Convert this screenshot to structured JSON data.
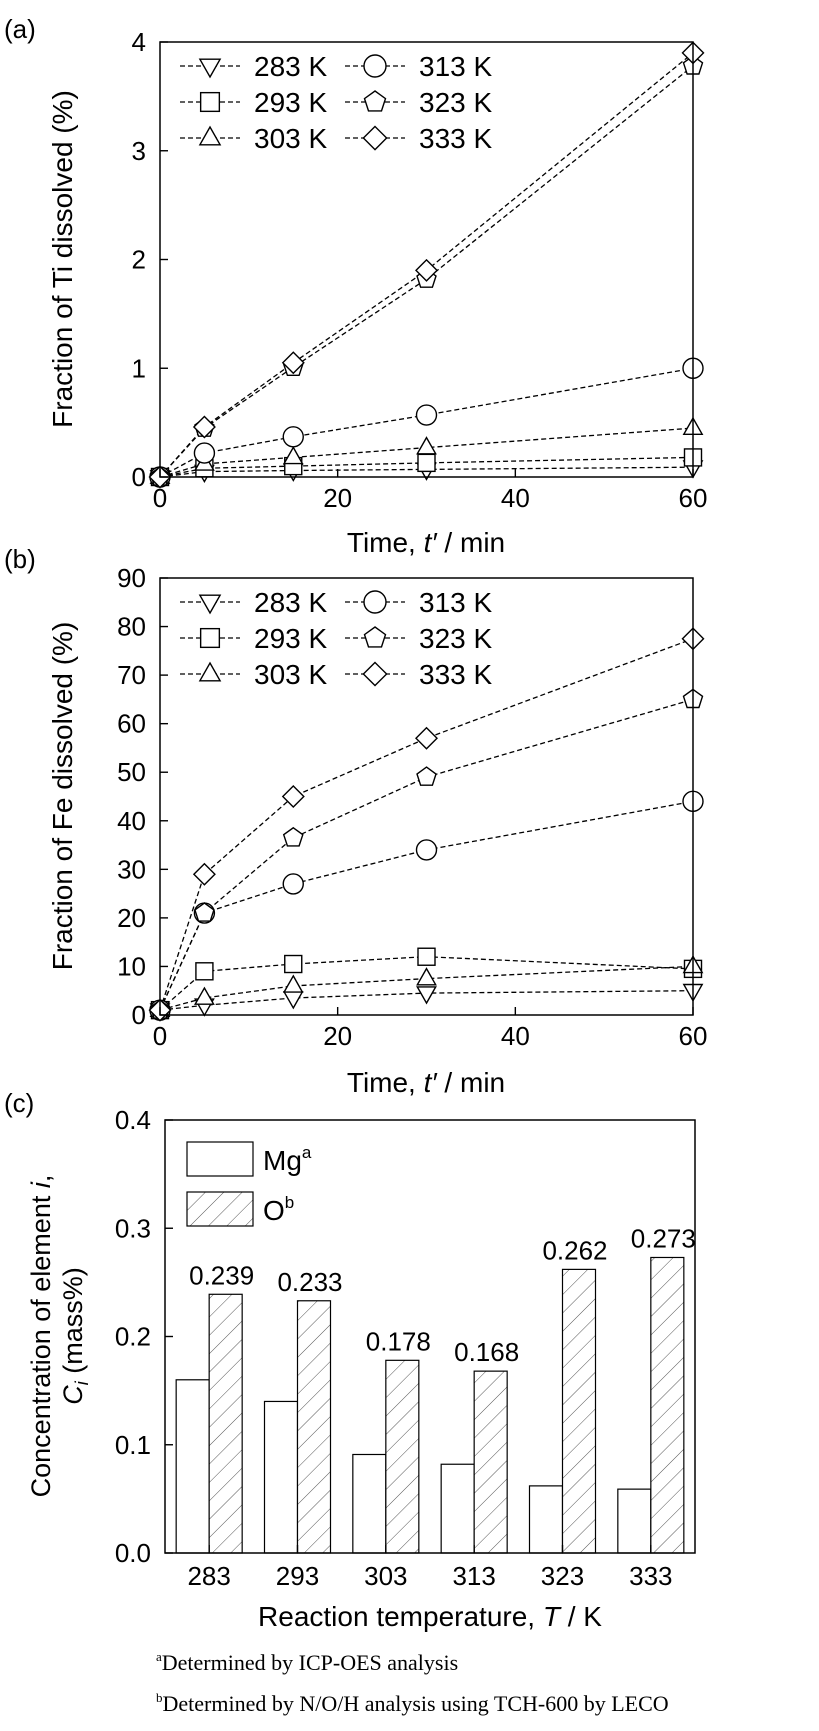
{
  "chart_data": [
    {
      "panel": "(a)",
      "type": "line",
      "xlabel": "Time, t′ / min",
      "xlabel_parts": [
        "Time, ",
        "t′",
        " / min"
      ],
      "ylabel": "Fraction of Ti dissolved (%)",
      "xlim": [
        0,
        60
      ],
      "ylim": [
        0,
        4
      ],
      "xticks": [
        0,
        20,
        40,
        60
      ],
      "yticks": [
        0,
        1,
        2,
        3,
        4
      ],
      "legend_position": "top-left",
      "x": [
        0,
        5,
        15,
        30,
        60
      ],
      "series": [
        {
          "name": "283 K",
          "marker": "triangle-down",
          "values": [
            0,
            0.05,
            0.06,
            0.07,
            0.09
          ]
        },
        {
          "name": "293 K",
          "marker": "square",
          "values": [
            0,
            0.08,
            0.1,
            0.13,
            0.18
          ]
        },
        {
          "name": "303 K",
          "marker": "triangle-up",
          "values": [
            0,
            0.12,
            0.18,
            0.27,
            0.45
          ]
        },
        {
          "name": "313 K",
          "marker": "circle",
          "values": [
            0,
            0.22,
            0.37,
            0.57,
            1.0
          ]
        },
        {
          "name": "323 K",
          "marker": "pentagon",
          "values": [
            0,
            0.45,
            1.01,
            1.82,
            3.78
          ]
        },
        {
          "name": "333 K",
          "marker": "diamond",
          "values": [
            0,
            0.46,
            1.05,
            1.9,
            3.9
          ]
        }
      ]
    },
    {
      "panel": "(b)",
      "type": "line",
      "xlabel": "Time, t′ / min",
      "xlabel_parts": [
        "Time, ",
        "t′",
        " / min"
      ],
      "ylabel": "Fraction of Fe dissolved (%)",
      "xlim": [
        0,
        60
      ],
      "ylim": [
        0,
        90
      ],
      "xticks": [
        0,
        20,
        40,
        60
      ],
      "yticks": [
        0,
        10,
        20,
        30,
        40,
        50,
        60,
        70,
        80,
        90
      ],
      "legend_position": "top-left",
      "x": [
        0,
        5,
        15,
        30,
        60
      ],
      "series": [
        {
          "name": "283 K",
          "marker": "triangle-down",
          "values": [
            1,
            2,
            3.5,
            4.5,
            5
          ]
        },
        {
          "name": "293 K",
          "marker": "square",
          "values": [
            1,
            9,
            10.5,
            12,
            9.5
          ]
        },
        {
          "name": "303 K",
          "marker": "triangle-up",
          "values": [
            1,
            3.5,
            6,
            7.5,
            10
          ]
        },
        {
          "name": "313 K",
          "marker": "circle",
          "values": [
            1,
            21,
            27,
            34,
            44
          ]
        },
        {
          "name": "323 K",
          "marker": "pentagon",
          "values": [
            1,
            21,
            36.5,
            49,
            65
          ]
        },
        {
          "name": "333 K",
          "marker": "diamond",
          "values": [
            1,
            29,
            45,
            57,
            77.5
          ]
        }
      ]
    },
    {
      "panel": "(c)",
      "type": "bar",
      "xlabel": "Reaction temperature, T / K",
      "xlabel_parts": [
        "Reaction temperature, ",
        "T",
        " / K"
      ],
      "ylabel": "Concentration of element i, C_i (mass%)",
      "ylabel_line1": [
        "Concentration of element ",
        "i",
        ","
      ],
      "ylabel_line2": [
        "C",
        "i",
        " (mass%)"
      ],
      "ylim": [
        0,
        0.4
      ],
      "yticks": [
        "0.0",
        "0.1",
        "0.2",
        "0.3",
        "0.4"
      ],
      "legend_position": "top-left",
      "categories": [
        "283",
        "293",
        "303",
        "313",
        "323",
        "333"
      ],
      "series": [
        {
          "name": "Mg",
          "superscript": "a",
          "pattern": "none",
          "values": [
            0.16,
            0.14,
            0.091,
            0.082,
            0.062,
            0.059
          ]
        },
        {
          "name": "O",
          "superscript": "b",
          "pattern": "hatched",
          "values": [
            0.239,
            0.233,
            0.178,
            0.168,
            0.262,
            0.273
          ]
        }
      ],
      "data_labels": [
        "0.239",
        "0.233",
        "0.178",
        "0.168",
        "0.262",
        "0.273"
      ]
    }
  ],
  "footnotes": [
    {
      "mark": "a",
      "text": "Determined by ICP-OES analysis"
    },
    {
      "mark": "b",
      "text": "Determined by N/O/H analysis using TCH-600 by LECO"
    }
  ]
}
